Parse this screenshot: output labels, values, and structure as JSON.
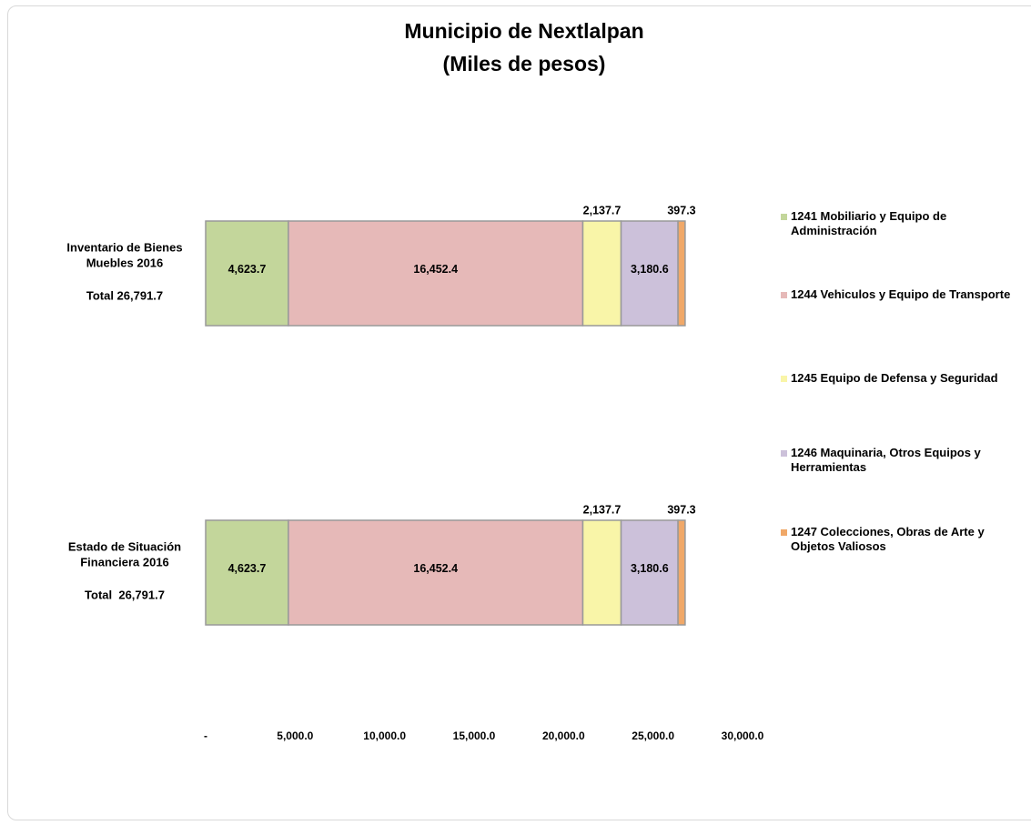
{
  "chart_data": {
    "type": "stacked-bar-horizontal",
    "title": "Municipio de Nextlalpan",
    "subtitle": "(Miles de pesos)",
    "categories": [
      [
        "Inventario de Bienes",
        "Muebles 2016",
        "Total 26,791.7"
      ],
      [
        "Estado de Situación",
        "Financiera 2016",
        "Total  26,791.7"
      ]
    ],
    "series": [
      {
        "name": "1241 Mobiliario y Equipo de Administración",
        "color": "#c3d69b",
        "values": [
          4623.7,
          4623.7
        ],
        "value_labels": [
          "4,623.7",
          "4,623.7"
        ]
      },
      {
        "name": "1244 Vehiculos y Equipo de Transporte",
        "color": "#e6b9b8",
        "values": [
          16452.4,
          16452.4
        ],
        "value_labels": [
          "16,452.4",
          "16,452.4"
        ]
      },
      {
        "name": "1245 Equipo de Defensa y Seguridad",
        "color": "#f9f5a8",
        "values": [
          2137.7,
          2137.7
        ],
        "value_labels": [
          "2,137.7",
          "2,137.7"
        ]
      },
      {
        "name": "1246 Maquinaria, Otros Equipos y Herramientas",
        "color": "#ccc1da",
        "values": [
          3180.6,
          3180.6
        ],
        "value_labels": [
          "3,180.6",
          "3,180.6"
        ]
      },
      {
        "name": "1247 Colecciones, Obras de Arte y Objetos Valiosos",
        "color": "#f0a868",
        "values": [
          397.3,
          397.3
        ],
        "value_labels": [
          "397.3",
          "397.3"
        ]
      }
    ],
    "xlim": [
      0,
      30000
    ],
    "xticks": [
      {
        "value": 0,
        "label": "-"
      },
      {
        "value": 5000,
        "label": "5,000.0"
      },
      {
        "value": 10000,
        "label": "10,000.0"
      },
      {
        "value": 15000,
        "label": "15,000.0"
      },
      {
        "value": 20000,
        "label": "20,000.0"
      },
      {
        "value": 25000,
        "label": "25,000.0"
      },
      {
        "value": 30000,
        "label": "30,000.0"
      }
    ],
    "grid": false,
    "legend": "right"
  }
}
